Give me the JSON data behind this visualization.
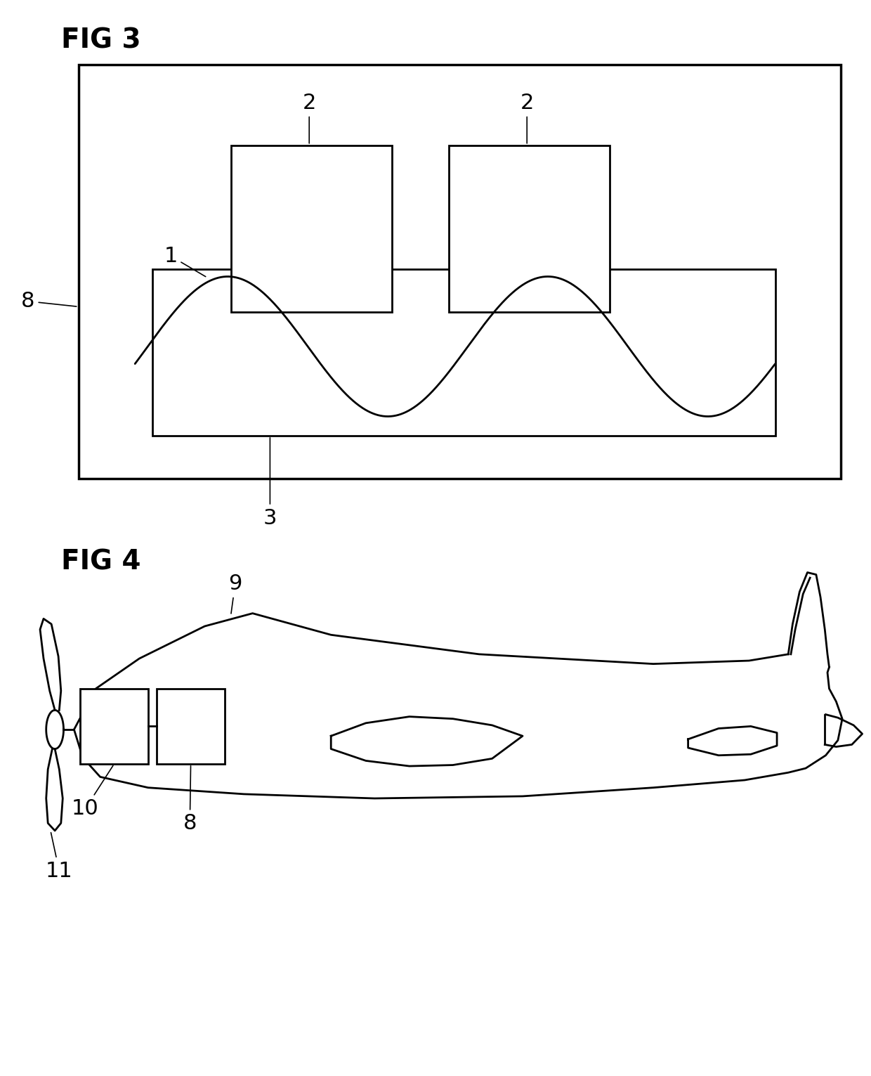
{
  "fig_label_3": "FIG 3",
  "fig_label_4": "FIG 4",
  "background_color": "#ffffff",
  "line_color": "#000000",
  "label_fontsize": 28,
  "ref_fontsize": 22
}
